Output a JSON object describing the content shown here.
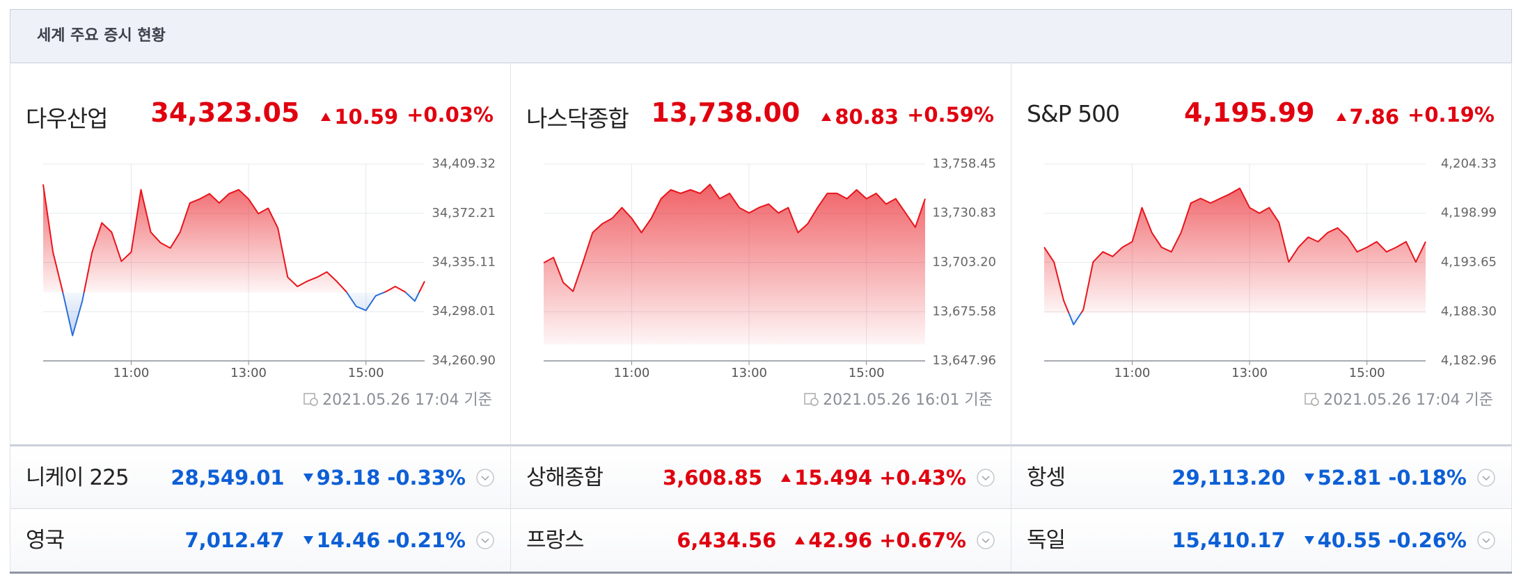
{
  "header": {
    "title": "세계 주요 증시 현황"
  },
  "panels": [
    {
      "name": "다우산업",
      "price": "34,323.05",
      "change": "10.59",
      "change_pct": "+0.03%",
      "timestamp": "2021.05.26 17:04 기준",
      "chart_data": {
        "type": "line",
        "x": [
          "09:30",
          "09:40",
          "09:50",
          "10:00",
          "10:10",
          "10:20",
          "10:30",
          "10:40",
          "10:50",
          "11:00",
          "11:10",
          "11:20",
          "11:30",
          "11:40",
          "11:50",
          "12:00",
          "12:10",
          "12:20",
          "12:30",
          "12:40",
          "12:50",
          "13:00",
          "13:10",
          "13:20",
          "13:30",
          "13:40",
          "13:50",
          "14:00",
          "14:10",
          "14:20",
          "14:30",
          "14:40",
          "14:50",
          "15:00",
          "15:10",
          "15:20",
          "15:30",
          "15:40",
          "15:50",
          "16:00"
        ],
        "series": [
          {
            "color": "#e8141b",
            "color_below": "#2a6fd8",
            "values": [
              34394,
              34343,
              34313,
              34280,
              34306,
              34343,
              34365,
              34358,
              34336,
              34343,
              34390,
              34358,
              34350,
              34346,
              34358,
              34380,
              34383,
              34387,
              34380,
              34387,
              34390,
              34383,
              34372,
              34376,
              34361,
              34324,
              34317,
              34321,
              34324,
              34328,
              34321,
              34313,
              34302,
              34299,
              34310,
              34313,
              34317,
              34313,
              34306,
              34321
            ]
          }
        ],
        "ylim": [
          34260.9,
          34409.32
        ],
        "yticks": [
          {
            "value": 34260.9,
            "label": "34,260.90"
          },
          {
            "value": 34298.01,
            "label": "34,298.01"
          },
          {
            "value": 34335.11,
            "label": "34,335.11"
          },
          {
            "value": 34372.21,
            "label": "34,372.21"
          },
          {
            "value": 34409.32,
            "label": "34,409.32"
          }
        ],
        "xticks": [
          "11:00",
          "13:00",
          "15:00"
        ],
        "grid": true
      }
    },
    {
      "name": "나스닥종합",
      "price": "13,738.00",
      "change": "80.83",
      "change_pct": "+0.59%",
      "timestamp": "2021.05.26 16:01 기준",
      "chart_data": {
        "type": "line",
        "x": [
          "09:30",
          "09:40",
          "09:50",
          "10:00",
          "10:10",
          "10:20",
          "10:30",
          "10:40",
          "10:50",
          "11:00",
          "11:10",
          "11:20",
          "11:30",
          "11:40",
          "11:50",
          "12:00",
          "12:10",
          "12:20",
          "12:30",
          "12:40",
          "12:50",
          "13:00",
          "13:10",
          "13:20",
          "13:30",
          "13:40",
          "13:50",
          "14:00",
          "14:10",
          "14:20",
          "14:30",
          "14:40",
          "14:50",
          "15:00",
          "15:10",
          "15:20",
          "15:30",
          "15:40",
          "15:50",
          "16:00"
        ],
        "series": [
          {
            "color": "#e8141b",
            "color_below": "#2a6fd8",
            "values": [
              13703,
              13706,
              13692,
              13687,
              13703,
              13720,
              13725,
              13728,
              13734,
              13728,
              13720,
              13728,
              13739,
              13744,
              13742,
              13744,
              13742,
              13747,
              13739,
              13742,
              13734,
              13731,
              13734,
              13736,
              13731,
              13734,
              13720,
              13725,
              13734,
              13742,
              13742,
              13739,
              13744,
              13739,
              13742,
              13736,
              13739,
              13731,
              13723,
              13739
            ]
          }
        ],
        "ylim": [
          13647.96,
          13758.45
        ],
        "yticks": [
          {
            "value": 13647.96,
            "label": "13,647.96"
          },
          {
            "value": 13675.58,
            "label": "13,675.58"
          },
          {
            "value": 13703.2,
            "label": "13,703.20"
          },
          {
            "value": 13730.83,
            "label": "13,730.83"
          },
          {
            "value": 13758.45,
            "label": "13,758.45"
          }
        ],
        "xticks": [
          "11:00",
          "13:00",
          "15:00"
        ],
        "grid": true
      }
    },
    {
      "name": "S&P 500",
      "price": "4,195.99",
      "change": "7.86",
      "change_pct": "+0.19%",
      "timestamp": "2021.05.26 17:04 기준",
      "chart_data": {
        "type": "line",
        "x": [
          "09:30",
          "09:40",
          "09:50",
          "10:00",
          "10:10",
          "10:20",
          "10:30",
          "10:40",
          "10:50",
          "11:00",
          "11:10",
          "11:20",
          "11:30",
          "11:40",
          "11:50",
          "12:00",
          "12:10",
          "12:20",
          "12:30",
          "12:40",
          "12:50",
          "13:00",
          "13:10",
          "13:20",
          "13:30",
          "13:40",
          "13:50",
          "14:00",
          "14:10",
          "14:20",
          "14:30",
          "14:40",
          "14:50",
          "15:00",
          "15:10",
          "15:20",
          "15:30",
          "15:40",
          "15:50",
          "16:00"
        ],
        "series": [
          {
            "color": "#e8141b",
            "color_below": "#2a6fd8",
            "values": [
              4195.3,
              4193.7,
              4189.5,
              4186.9,
              4188.5,
              4193.7,
              4194.8,
              4194.3,
              4195.3,
              4195.9,
              4199.6,
              4196.9,
              4195.3,
              4194.8,
              4196.9,
              4200.1,
              4200.6,
              4200.1,
              4200.6,
              4201.1,
              4201.7,
              4199.6,
              4199.0,
              4199.6,
              4198.0,
              4193.7,
              4195.3,
              4196.4,
              4195.9,
              4196.9,
              4197.4,
              4196.4,
              4194.8,
              4195.3,
              4195.9,
              4194.8,
              4195.3,
              4195.9,
              4193.7,
              4195.9
            ]
          }
        ],
        "ylim": [
          4182.96,
          4204.33
        ],
        "yticks": [
          {
            "value": 4182.96,
            "label": "4,182.96"
          },
          {
            "value": 4188.3,
            "label": "4,188.30"
          },
          {
            "value": 4193.65,
            "label": "4,193.65"
          },
          {
            "value": 4198.99,
            "label": "4,198.99"
          },
          {
            "value": 4204.33,
            "label": "4,204.33"
          }
        ],
        "xticks": [
          "11:00",
          "13:00",
          "15:00"
        ],
        "grid": true
      }
    }
  ],
  "rows": [
    {
      "name": "니케이 225",
      "price": "28,549.01",
      "change": "93.18",
      "change_pct": "-0.33%"
    },
    {
      "name": "상해종합",
      "price": "3,608.85",
      "change": "15.494",
      "change_pct": "+0.43%"
    },
    {
      "name": "항셍",
      "price": "29,113.20",
      "change": "52.81",
      "change_pct": "-0.18%"
    },
    {
      "name": "영국",
      "price": "7,012.47",
      "change": "14.46",
      "change_pct": "-0.21%"
    },
    {
      "name": "프랑스",
      "price": "6,434.56",
      "change": "42.96",
      "change_pct": "+0.67%"
    },
    {
      "name": "독일",
      "price": "15,410.17",
      "change": "40.55",
      "change_pct": "-0.26%"
    }
  ]
}
